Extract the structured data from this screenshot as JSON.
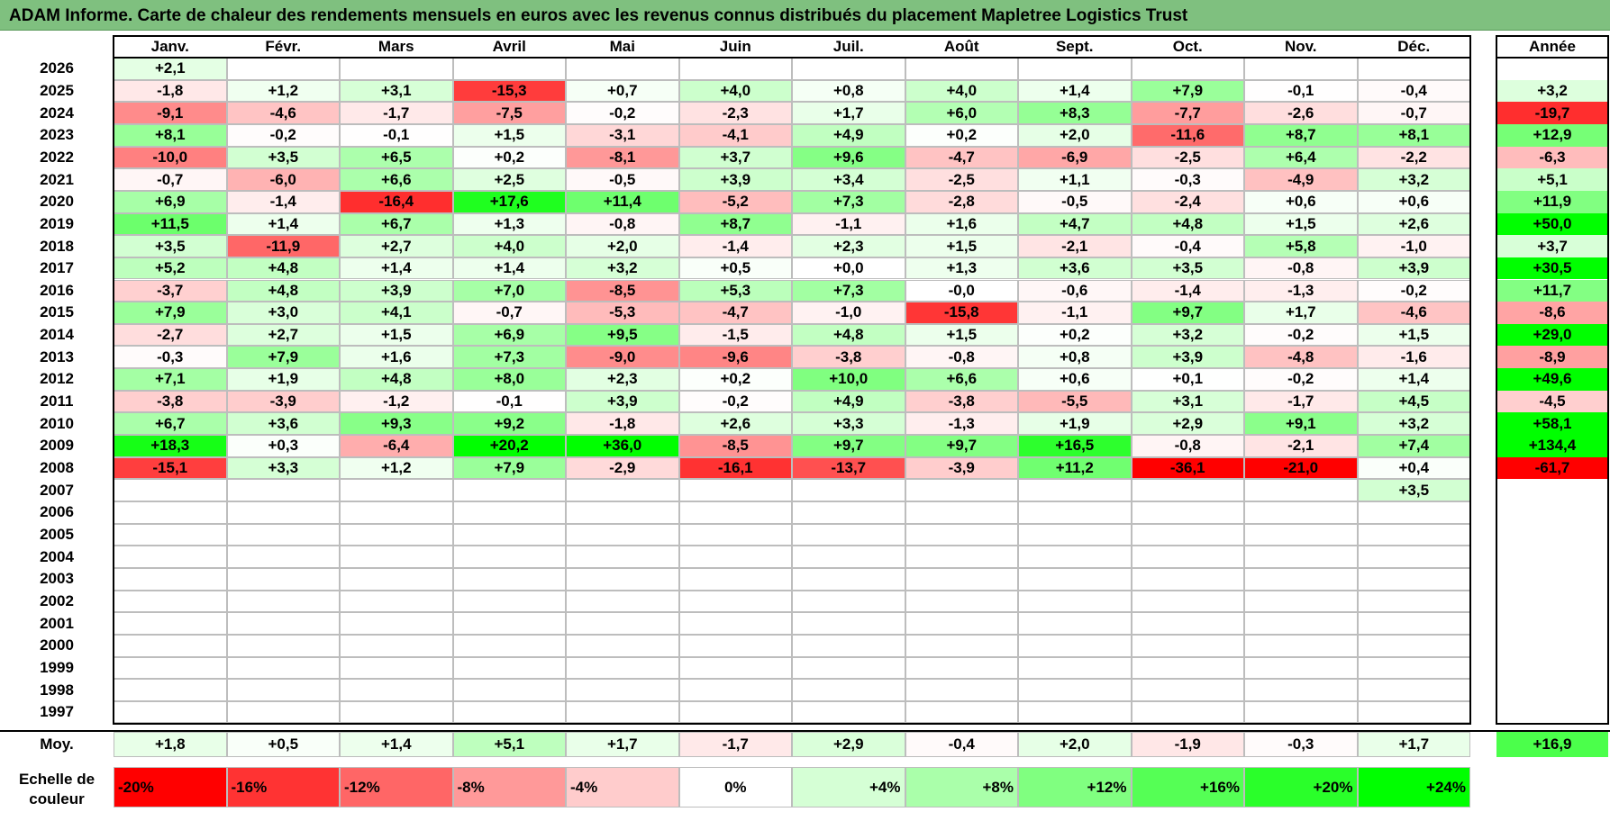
{
  "title": "ADAM Informe. Carte de chaleur des rendements mensuels en euros avec les revenus connus distribués du placement Mapletree Logistics Trust",
  "chart_data": {
    "type": "heatmap",
    "title": "ADAM Informe. Carte de chaleur des rendements mensuels en euros avec les revenus connus distribués du placement Mapletree Logistics Trust",
    "months": [
      "Janv.",
      "Févr.",
      "Mars",
      "Avril",
      "Mai",
      "Juin",
      "Juil.",
      "Août",
      "Sept.",
      "Oct.",
      "Nov.",
      "Déc."
    ],
    "year_header": "Année",
    "rows": [
      {
        "year": "2026",
        "months": [
          "+2,1",
          "",
          "",
          "",
          "",
          "",
          "",
          "",
          "",
          "",
          "",
          ""
        ],
        "annual": ""
      },
      {
        "year": "2025",
        "months": [
          "-1,8",
          "+1,2",
          "+3,1",
          "-15,3",
          "+0,7",
          "+4,0",
          "+0,8",
          "+4,0",
          "+1,4",
          "+7,9",
          "-0,1",
          "-0,4"
        ],
        "annual": "+3,2"
      },
      {
        "year": "2024",
        "months": [
          "-9,1",
          "-4,6",
          "-1,7",
          "-7,5",
          "-0,2",
          "-2,3",
          "+1,7",
          "+6,0",
          "+8,3",
          "-7,7",
          "-2,6",
          "-0,7"
        ],
        "annual": "-19,7"
      },
      {
        "year": "2023",
        "months": [
          "+8,1",
          "-0,2",
          "-0,1",
          "+1,5",
          "-3,1",
          "-4,1",
          "+4,9",
          "+0,2",
          "+2,0",
          "-11,6",
          "+8,7",
          "+8,1"
        ],
        "annual": "+12,9"
      },
      {
        "year": "2022",
        "months": [
          "-10,0",
          "+3,5",
          "+6,5",
          "+0,2",
          "-8,1",
          "+3,7",
          "+9,6",
          "-4,7",
          "-6,9",
          "-2,5",
          "+6,4",
          "-2,2"
        ],
        "annual": "-6,3"
      },
      {
        "year": "2021",
        "months": [
          "-0,7",
          "-6,0",
          "+6,6",
          "+2,5",
          "-0,5",
          "+3,9",
          "+3,4",
          "-2,5",
          "+1,1",
          "-0,3",
          "-4,9",
          "+3,2"
        ],
        "annual": "+5,1"
      },
      {
        "year": "2020",
        "months": [
          "+6,9",
          "-1,4",
          "-16,4",
          "+17,6",
          "+11,4",
          "-5,2",
          "+7,3",
          "-2,8",
          "-0,5",
          "-2,4",
          "+0,6",
          "+0,6"
        ],
        "annual": "+11,9"
      },
      {
        "year": "2019",
        "months": [
          "+11,5",
          "+1,4",
          "+6,7",
          "+1,3",
          "-0,8",
          "+8,7",
          "-1,1",
          "+1,6",
          "+4,7",
          "+4,8",
          "+1,5",
          "+2,6"
        ],
        "annual": "+50,0"
      },
      {
        "year": "2018",
        "months": [
          "+3,5",
          "-11,9",
          "+2,7",
          "+4,0",
          "+2,0",
          "-1,4",
          "+2,3",
          "+1,5",
          "-2,1",
          "-0,4",
          "+5,8",
          "-1,0"
        ],
        "annual": "+3,7"
      },
      {
        "year": "2017",
        "months": [
          "+5,2",
          "+4,8",
          "+1,4",
          "+1,4",
          "+3,2",
          "+0,5",
          "+0,0",
          "+1,3",
          "+3,6",
          "+3,5",
          "-0,8",
          "+3,9"
        ],
        "annual": "+30,5"
      },
      {
        "year": "2016",
        "months": [
          "-3,7",
          "+4,8",
          "+3,9",
          "+7,0",
          "-8,5",
          "+5,3",
          "+7,3",
          "-0,0",
          "-0,6",
          "-1,4",
          "-1,3",
          "-0,2"
        ],
        "annual": "+11,7"
      },
      {
        "year": "2015",
        "months": [
          "+7,9",
          "+3,0",
          "+4,1",
          "-0,7",
          "-5,3",
          "-4,7",
          "-1,0",
          "-15,8",
          "-1,1",
          "+9,7",
          "+1,7",
          "-4,6"
        ],
        "annual": "-8,6"
      },
      {
        "year": "2014",
        "months": [
          "-2,7",
          "+2,7",
          "+1,5",
          "+6,9",
          "+9,5",
          "-1,5",
          "+4,8",
          "+1,5",
          "+0,2",
          "+3,2",
          "-0,2",
          "+1,5"
        ],
        "annual": "+29,0"
      },
      {
        "year": "2013",
        "months": [
          "-0,3",
          "+7,9",
          "+1,6",
          "+7,3",
          "-9,0",
          "-9,6",
          "-3,8",
          "-0,8",
          "+0,8",
          "+3,9",
          "-4,8",
          "-1,6"
        ],
        "annual": "-8,9"
      },
      {
        "year": "2012",
        "months": [
          "+7,1",
          "+1,9",
          "+4,8",
          "+8,0",
          "+2,3",
          "+0,2",
          "+10,0",
          "+6,6",
          "+0,6",
          "+0,1",
          "-0,2",
          "+1,4"
        ],
        "annual": "+49,6"
      },
      {
        "year": "2011",
        "months": [
          "-3,8",
          "-3,9",
          "-1,2",
          "-0,1",
          "+3,9",
          "-0,2",
          "+4,9",
          "-3,8",
          "-5,5",
          "+3,1",
          "-1,7",
          "+4,5"
        ],
        "annual": "-4,5"
      },
      {
        "year": "2010",
        "months": [
          "+6,7",
          "+3,6",
          "+9,3",
          "+9,2",
          "-1,8",
          "+2,6",
          "+3,3",
          "-1,3",
          "+1,9",
          "+2,9",
          "+9,1",
          "+3,2"
        ],
        "annual": "+58,1"
      },
      {
        "year": "2009",
        "months": [
          "+18,3",
          "+0,3",
          "-6,4",
          "+20,2",
          "+36,0",
          "-8,5",
          "+9,7",
          "+9,7",
          "+16,5",
          "-0,8",
          "-2,1",
          "+7,4"
        ],
        "annual": "+134,4"
      },
      {
        "year": "2008",
        "months": [
          "-15,1",
          "+3,3",
          "+1,2",
          "+7,9",
          "-2,9",
          "-16,1",
          "-13,7",
          "-3,9",
          "+11,2",
          "-36,1",
          "-21,0",
          "+0,4"
        ],
        "annual": "-61,7"
      },
      {
        "year": "2007",
        "months": [
          "",
          "",
          "",
          "",
          "",
          "",
          "",
          "",
          "",
          "",
          "",
          "+3,5"
        ],
        "annual": ""
      },
      {
        "year": "2006",
        "months": [
          "",
          "",
          "",
          "",
          "",
          "",
          "",
          "",
          "",
          "",
          "",
          ""
        ],
        "annual": ""
      },
      {
        "year": "2005",
        "months": [
          "",
          "",
          "",
          "",
          "",
          "",
          "",
          "",
          "",
          "",
          "",
          ""
        ],
        "annual": ""
      },
      {
        "year": "2004",
        "months": [
          "",
          "",
          "",
          "",
          "",
          "",
          "",
          "",
          "",
          "",
          "",
          ""
        ],
        "annual": ""
      },
      {
        "year": "2003",
        "months": [
          "",
          "",
          "",
          "",
          "",
          "",
          "",
          "",
          "",
          "",
          "",
          ""
        ],
        "annual": ""
      },
      {
        "year": "2002",
        "months": [
          "",
          "",
          "",
          "",
          "",
          "",
          "",
          "",
          "",
          "",
          "",
          ""
        ],
        "annual": ""
      },
      {
        "year": "2001",
        "months": [
          "",
          "",
          "",
          "",
          "",
          "",
          "",
          "",
          "",
          "",
          "",
          ""
        ],
        "annual": ""
      },
      {
        "year": "2000",
        "months": [
          "",
          "",
          "",
          "",
          "",
          "",
          "",
          "",
          "",
          "",
          "",
          ""
        ],
        "annual": ""
      },
      {
        "year": "1999",
        "months": [
          "",
          "",
          "",
          "",
          "",
          "",
          "",
          "",
          "",
          "",
          "",
          ""
        ],
        "annual": ""
      },
      {
        "year": "1998",
        "months": [
          "",
          "",
          "",
          "",
          "",
          "",
          "",
          "",
          "",
          "",
          "",
          ""
        ],
        "annual": ""
      },
      {
        "year": "1997",
        "months": [
          "",
          "",
          "",
          "",
          "",
          "",
          "",
          "",
          "",
          "",
          "",
          ""
        ],
        "annual": ""
      }
    ],
    "average_row": {
      "label": "Moy.",
      "months": [
        "+1,8",
        "+0,5",
        "+1,4",
        "+5,1",
        "+1,7",
        "-1,7",
        "+2,9",
        "-0,4",
        "+2,0",
        "-1,9",
        "-0,3",
        "+1,7"
      ],
      "annual": "+16,9"
    },
    "color_scale": {
      "label_line1": "Echelle de",
      "label_line2": "couleur",
      "stops": [
        {
          "label": "-20%",
          "value": -20,
          "color": "#ff0000"
        },
        {
          "label": "-16%",
          "value": -16,
          "color": "#ff3333"
        },
        {
          "label": "-12%",
          "value": -12,
          "color": "#ff6666"
        },
        {
          "label": "-8%",
          "value": -8,
          "color": "#ff9999"
        },
        {
          "label": "-4%",
          "value": -4,
          "color": "#ffcccc"
        },
        {
          "label": "0%",
          "value": 0,
          "color": "#ffffff"
        },
        {
          "label": "+4%",
          "value": 4,
          "color": "#d5ffd5"
        },
        {
          "label": "+8%",
          "value": 8,
          "color": "#aaffaa"
        },
        {
          "label": "+12%",
          "value": 12,
          "color": "#80ff80"
        },
        {
          "label": "+16%",
          "value": 16,
          "color": "#55ff55"
        },
        {
          "label": "+20%",
          "value": 20,
          "color": "#2aff2a"
        },
        {
          "label": "+24%",
          "value": 24,
          "color": "#00ff00"
        }
      ]
    }
  }
}
